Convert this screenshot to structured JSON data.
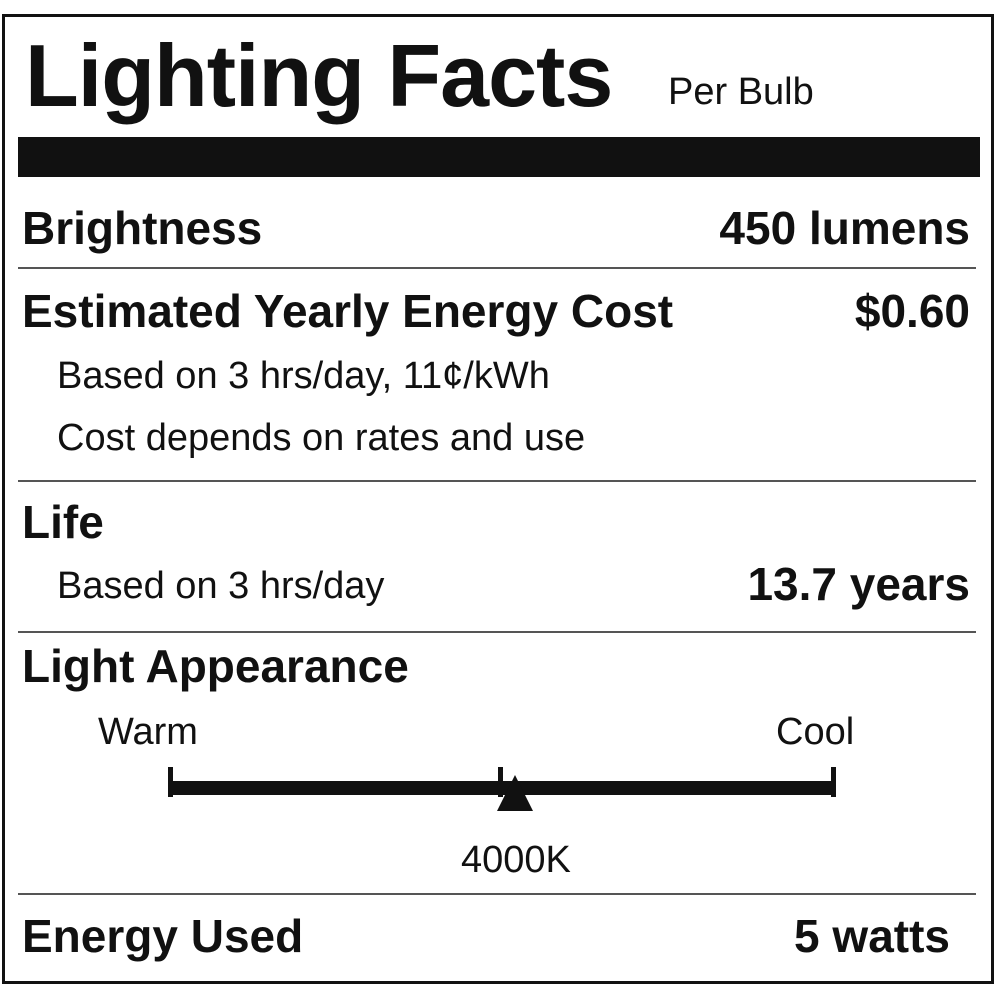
{
  "title": "Lighting Facts",
  "subtitle": "Per Bulb",
  "brightness": {
    "label": "Brightness",
    "value": "450 lumens"
  },
  "cost": {
    "label": "Estimated Yearly Energy Cost",
    "value": "$0.60",
    "note1": "Based on 3 hrs/day, 11¢/kWh",
    "note2": "Cost depends on rates and use"
  },
  "life": {
    "label": "Life",
    "note": "Based on 3 hrs/day",
    "value": "13.7 years"
  },
  "appearance": {
    "label": "Light Appearance",
    "warm": "Warm",
    "cool": "Cool",
    "value": "4000K",
    "position_fraction": 0.52
  },
  "energy": {
    "label": "Energy Used",
    "value": "5 watts"
  }
}
